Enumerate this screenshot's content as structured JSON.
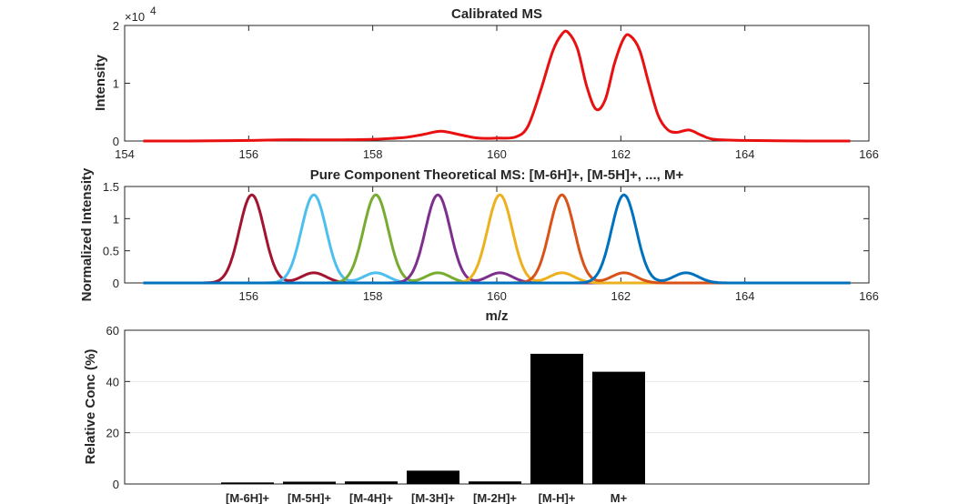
{
  "chart_data": [
    {
      "type": "line",
      "title": "Calibrated MS",
      "xlabel": "",
      "ylabel": "Intensity",
      "exponent_label": "×10",
      "exponent_power": "4",
      "xlim": [
        154,
        166
      ],
      "ylim": [
        0,
        2
      ],
      "xticks": [
        "154",
        "156",
        "158",
        "160",
        "162",
        "164",
        "166"
      ],
      "yticks": [
        "0",
        "1",
        "2"
      ],
      "grid": false,
      "series": [
        {
          "color": "#e81010",
          "x": [
            154.3,
            155.0,
            156.0,
            156.5,
            157.0,
            157.5,
            158.0,
            158.5,
            158.8,
            159.1,
            159.4,
            159.7,
            160.0,
            160.3,
            160.5,
            160.7,
            160.9,
            161.05,
            161.15,
            161.3,
            161.45,
            161.6,
            161.75,
            161.9,
            162.05,
            162.15,
            162.3,
            162.45,
            162.6,
            162.75,
            162.9,
            163.1,
            163.3,
            163.5,
            164.0,
            165.0,
            165.7
          ],
          "y": [
            0.0,
            0.0,
            0.01,
            0.02,
            0.02,
            0.02,
            0.03,
            0.06,
            0.11,
            0.17,
            0.11,
            0.05,
            0.05,
            0.07,
            0.25,
            0.85,
            1.55,
            1.85,
            1.88,
            1.6,
            0.95,
            0.55,
            0.72,
            1.35,
            1.78,
            1.82,
            1.58,
            1.0,
            0.45,
            0.2,
            0.15,
            0.19,
            0.1,
            0.03,
            0.01,
            0.0,
            0.0
          ]
        }
      ]
    },
    {
      "type": "line",
      "title": "Pure Component Theoretical MS: [M-6H]+, [M-5H]+, ..., M+",
      "xlabel": "m/z",
      "ylabel": "Normalized Intensity",
      "xlim": [
        154,
        166
      ],
      "ylim": [
        0,
        1.5
      ],
      "xticks": [
        "156",
        "158",
        "160",
        "162",
        "164",
        "166"
      ],
      "yticks": [
        "0",
        "0.5",
        "1",
        "1.5"
      ],
      "grid": false,
      "series": [
        {
          "color": "#a2142f",
          "peak_center": 156.05,
          "peak_height": 1.37,
          "x_start": 154.3,
          "x_end": 165.7
        },
        {
          "color": "#4dbeee",
          "peak_center": 157.05,
          "peak_height": 1.37,
          "x_start": 154.3,
          "x_end": 165.7
        },
        {
          "color": "#77ac30",
          "peak_center": 158.05,
          "peak_height": 1.37,
          "x_start": 154.3,
          "x_end": 165.7
        },
        {
          "color": "#7e2f8e",
          "peak_center": 159.05,
          "peak_height": 1.37,
          "x_start": 154.3,
          "x_end": 165.7
        },
        {
          "color": "#edb120",
          "peak_center": 160.05,
          "peak_height": 1.37,
          "x_start": 154.3,
          "x_end": 165.7
        },
        {
          "color": "#d95319",
          "peak_center": 161.05,
          "peak_height": 1.37,
          "x_start": 154.3,
          "x_end": 165.7
        },
        {
          "color": "#0072bd",
          "peak_center": 162.05,
          "peak_height": 1.37,
          "x_start": 154.3,
          "x_end": 165.7
        }
      ],
      "isotope_ratio": 0.115,
      "peak_sigma": 0.2
    },
    {
      "type": "bar",
      "title": "",
      "xlabel": "",
      "ylabel": "Relative Conc (%)",
      "categories": [
        "[M-6H]+",
        "[M-5H]+",
        "[M-4H]+",
        "[M-3H]+",
        "[M-2H]+",
        "[M-H]+",
        "M+"
      ],
      "values": [
        0.6,
        0.9,
        1.0,
        5.2,
        1.0,
        50.8,
        43.8
      ],
      "ylim": [
        0,
        60
      ],
      "yticks": [
        "0",
        "20",
        "40",
        "60"
      ],
      "bar_color": "#000000",
      "grid": true
    }
  ]
}
